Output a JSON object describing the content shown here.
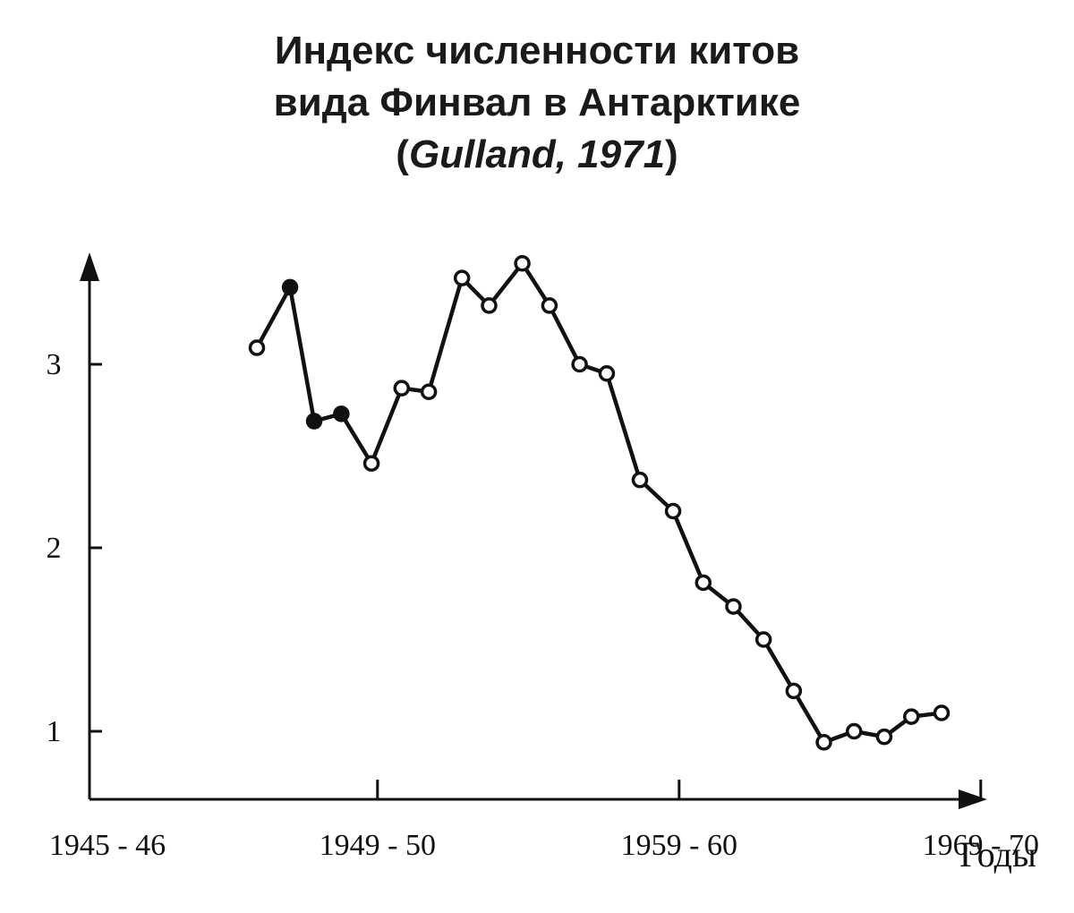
{
  "chart_data": {
    "type": "line",
    "title_line1": "Индекс численности китов",
    "title_line2": "вида Финвал в Антарктике",
    "subtitle_open": "(",
    "subtitle_author": "Gulland, 1971",
    "subtitle_close": ")",
    "xlabel": "Годы",
    "ylabel": "",
    "x_tick_labels": [
      "1945 - 46",
      "1949 - 50",
      "1959 - 60",
      "1969 - 70"
    ],
    "x_tick_positions": [
      0,
      4,
      14,
      24
    ],
    "y_ticks": [
      1,
      2,
      3
    ],
    "xlim": [
      -1.6,
      31
    ],
    "ylim": [
      0.38,
      3.9
    ],
    "x": [
      0,
      1,
      2,
      3,
      4,
      5,
      6,
      7,
      8,
      9,
      10,
      11,
      12,
      13,
      14,
      15,
      16,
      17,
      18,
      19,
      20,
      21,
      22,
      23,
      24,
      25
    ],
    "values": [
      3.09,
      3.42,
      2.69,
      2.73,
      2.46,
      2.87,
      2.85,
      3.47,
      3.32,
      3.55,
      3.32,
      3.0,
      2.95,
      2.37,
      2.2,
      1.81,
      1.68,
      1.5,
      1.22,
      0.94,
      1.0,
      0.97,
      1.08,
      1.1,
      null,
      null
    ],
    "series_points": [
      [
        0,
        3.09
      ],
      [
        1.1,
        3.42
      ],
      [
        1.9,
        2.69
      ],
      [
        2.8,
        2.73
      ],
      [
        3.8,
        2.46
      ],
      [
        4.8,
        2.87
      ],
      [
        5.7,
        2.85
      ],
      [
        6.8,
        3.47
      ],
      [
        7.7,
        3.32
      ],
      [
        8.8,
        3.55
      ],
      [
        9.7,
        3.32
      ],
      [
        10.7,
        3.0
      ],
      [
        11.6,
        2.95
      ],
      [
        12.7,
        2.37
      ],
      [
        13.8,
        2.2
      ],
      [
        14.8,
        1.81
      ],
      [
        15.8,
        1.68
      ],
      [
        16.8,
        1.5
      ],
      [
        17.8,
        1.22
      ],
      [
        18.8,
        0.94
      ],
      [
        19.8,
        1.0
      ],
      [
        20.8,
        0.97
      ],
      [
        21.7,
        1.08
      ],
      [
        22.7,
        1.1
      ]
    ],
    "filled_point_count": 4,
    "line_color": "#111111"
  }
}
